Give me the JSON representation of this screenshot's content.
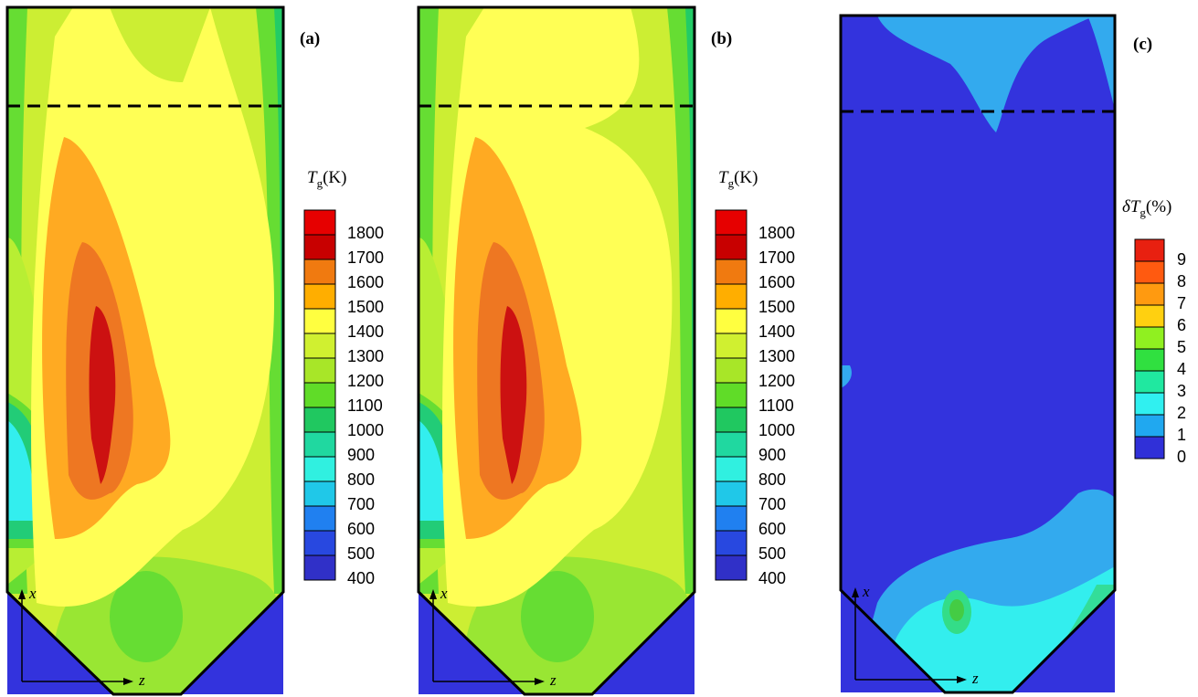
{
  "panels": [
    {
      "tag": "(a)",
      "x_label": "x",
      "z_label": "z",
      "cb_title_var": "T",
      "cb_title_sub": "g",
      "cb_title_unit": "(K)"
    },
    {
      "tag": "(b)",
      "x_label": "x",
      "z_label": "z",
      "cb_title_var": "T",
      "cb_title_sub": "g",
      "cb_title_unit": "(K)"
    },
    {
      "tag": "(c)",
      "x_label": "x",
      "z_label": "z",
      "cb_title_var": "δT",
      "cb_title_sub": "g",
      "cb_title_unit": "(%)"
    }
  ],
  "colorbars": [
    {
      "ticks": [
        "1800",
        "1700",
        "1600",
        "1500",
        "1400",
        "1300",
        "1200",
        "1100",
        "1000",
        "900",
        "800",
        "700",
        "600",
        "500",
        "400"
      ],
      "colors": [
        "#e60000",
        "#c80000",
        "#f07a10",
        "#ffae00",
        "#ffff40",
        "#d0f030",
        "#a8e628",
        "#60dc28",
        "#20c860",
        "#20d8a0",
        "#30f0e0",
        "#20c8e8",
        "#2080f0",
        "#2848e0",
        "#3030c8"
      ]
    },
    {
      "ticks": [
        "1800",
        "1700",
        "1600",
        "1500",
        "1400",
        "1300",
        "1200",
        "1100",
        "1000",
        "900",
        "800",
        "700",
        "600",
        "500",
        "400"
      ],
      "colors": [
        "#e60000",
        "#c80000",
        "#f07a10",
        "#ffae00",
        "#ffff40",
        "#d0f030",
        "#a8e628",
        "#60dc28",
        "#20c860",
        "#20d8a0",
        "#30f0e0",
        "#20c8e8",
        "#2080f0",
        "#2848e0",
        "#3030c8"
      ]
    },
    {
      "ticks": [
        "9",
        "8",
        "7",
        "6",
        "5",
        "4",
        "3",
        "2",
        "1",
        "0"
      ],
      "colors": [
        "#e82010",
        "#ff5a10",
        "#ff9a10",
        "#ffd010",
        "#90f020",
        "#30e040",
        "#20e8a0",
        "#30f0f0",
        "#20a8f0",
        "#3030d8"
      ]
    }
  ],
  "colors": {
    "cold_blue": "#3333dd",
    "light_blue": "#33aaee",
    "cyan": "#33eeee",
    "green": "#44cc44",
    "yellow_green": "#ccee33",
    "yellow": "#ffff55",
    "orange": "#ffaa22",
    "dark_orange": "#ee7722",
    "red": "#cc1111"
  }
}
